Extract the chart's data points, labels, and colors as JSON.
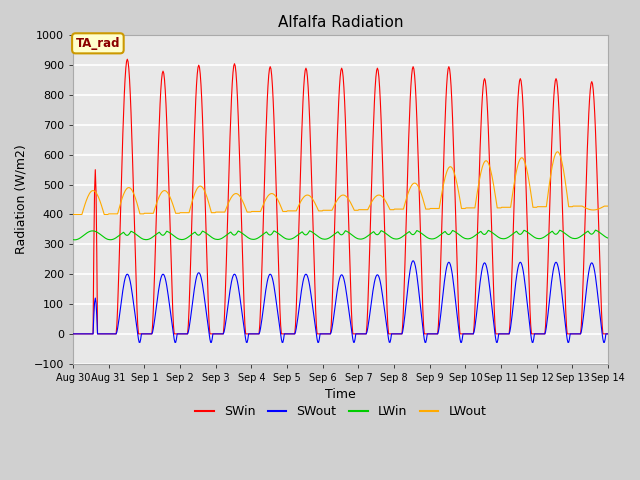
{
  "title": "Alfalfa Radiation",
  "xlabel": "Time",
  "ylabel": "Radiation (W/m2)",
  "ylim": [
    -100,
    1000
  ],
  "xlim": [
    0,
    15
  ],
  "x_tick_labels": [
    "Aug 30",
    "Aug 31",
    "Sep 1",
    "Sep 2",
    "Sep 3",
    "Sep 4",
    "Sep 5",
    "Sep 6",
    "Sep 7",
    "Sep 8",
    "Sep 9",
    "Sep 10",
    "Sep 11",
    "Sep 12",
    "Sep 13",
    "Sep 14"
  ],
  "annotation_text": "TA_rad",
  "annotation_bg": "#ffffcc",
  "annotation_border": "#cc9900",
  "fig_bg_color": "#d0d0d0",
  "plot_bg_color": "#e8e8e8",
  "grid_color": "white",
  "colors": {
    "SWin": "#ff0000",
    "SWout": "#0000ff",
    "LWin": "#00cc00",
    "LWout": "#ffaa00"
  },
  "day_peaks_SWin": [
    550,
    920,
    880,
    900,
    905,
    895,
    890,
    890,
    890,
    895,
    895,
    855,
    855,
    855,
    845
  ],
  "day_peaks_SWout": [
    120,
    200,
    200,
    205,
    200,
    200,
    200,
    198,
    198,
    245,
    240,
    238,
    240,
    240,
    238
  ],
  "lwin_base": 330,
  "lwout_night": 400,
  "lwout_day_peaks": [
    480,
    490,
    480,
    495,
    470,
    470,
    465,
    465,
    465,
    505,
    560,
    580,
    590,
    610,
    415
  ]
}
